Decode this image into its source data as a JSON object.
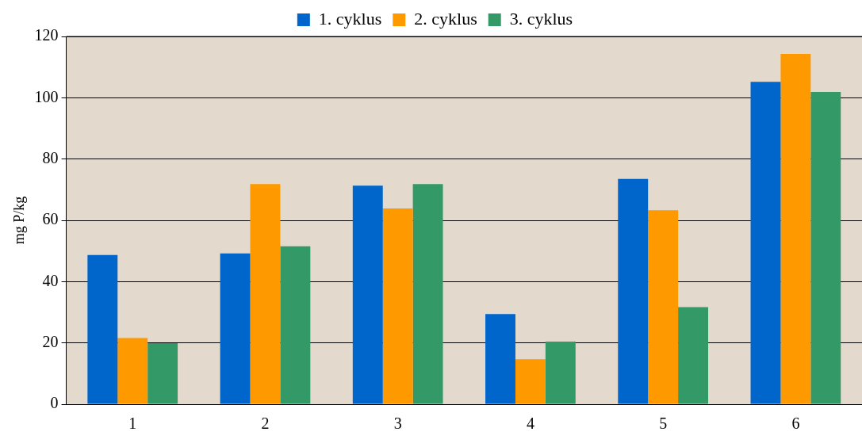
{
  "chart_data": {
    "type": "bar",
    "ylabel": "mg P/kg",
    "categories": [
      "1",
      "2",
      "3",
      "4",
      "5",
      "6"
    ],
    "series": [
      {
        "name": "1. cyklus",
        "color": "#0066cc",
        "values": [
          48.7,
          49.2,
          71.3,
          29.4,
          73.5,
          105.2
        ]
      },
      {
        "name": "2. cyklus",
        "color": "#ff9900",
        "values": [
          21.6,
          71.8,
          63.9,
          14.7,
          63.3,
          114.3
        ]
      },
      {
        "name": "3. cyklus",
        "color": "#339966",
        "values": [
          19.9,
          51.5,
          71.8,
          20.4,
          31.7,
          101.9
        ]
      }
    ],
    "ylim": [
      0,
      120
    ],
    "yticks": [
      0,
      20,
      40,
      60,
      80,
      100,
      120
    ],
    "grid": "y",
    "legend": "top"
  }
}
